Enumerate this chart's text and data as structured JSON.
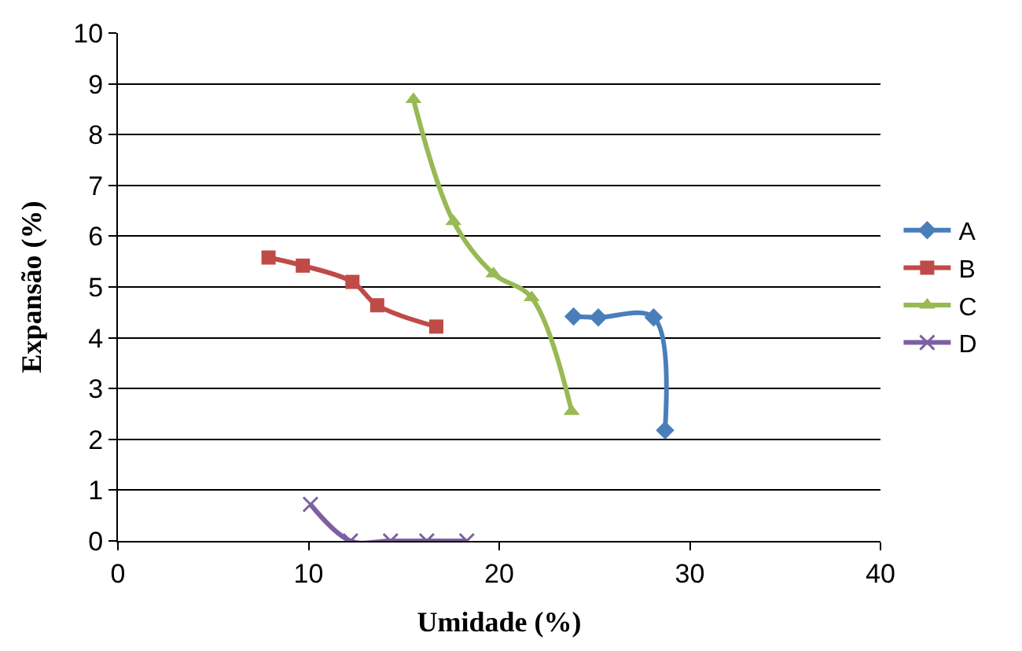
{
  "chart_data": {
    "type": "line",
    "xlabel": "Umidade (%)",
    "ylabel": "Expansão (%)",
    "xlim": [
      0,
      40
    ],
    "xticks": [
      0,
      10,
      20,
      30,
      40
    ],
    "ylim": [
      0,
      10
    ],
    "yticks": [
      0,
      1,
      2,
      3,
      4,
      5,
      6,
      7,
      8,
      9,
      10
    ],
    "grid": "y",
    "legend": "right",
    "series": [
      {
        "name": "A",
        "color": "#4a7ebb",
        "marker": "diamond",
        "x": [
          23.9,
          25.2,
          28.1,
          28.7
        ],
        "values": [
          4.42,
          4.4,
          4.4,
          2.18
        ]
      },
      {
        "name": "B",
        "color": "#be4b48",
        "marker": "square",
        "x": [
          7.9,
          9.7,
          12.3,
          13.6,
          16.7
        ],
        "values": [
          5.58,
          5.42,
          5.1,
          4.64,
          4.22
        ]
      },
      {
        "name": "C",
        "color": "#98b954",
        "marker": "triangle",
        "x": [
          15.5,
          17.6,
          19.7,
          21.7,
          23.8
        ],
        "values": [
          8.69,
          6.29,
          5.26,
          4.79,
          2.55
        ]
      },
      {
        "name": "D",
        "color": "#7d60a0",
        "marker": "cross",
        "x": [
          10.1,
          12.2,
          14.3,
          16.2,
          18.3
        ],
        "values": [
          0.72,
          0,
          0,
          0,
          0
        ]
      }
    ]
  }
}
